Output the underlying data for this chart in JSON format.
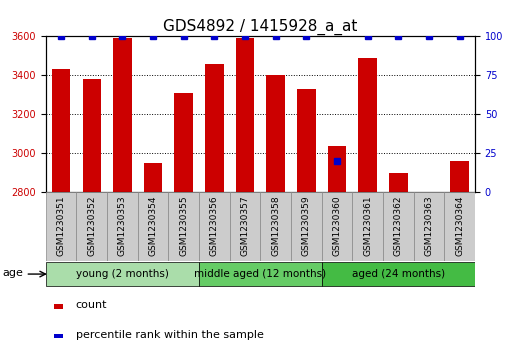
{
  "title": "GDS4892 / 1415928_a_at",
  "samples": [
    "GSM1230351",
    "GSM1230352",
    "GSM1230353",
    "GSM1230354",
    "GSM1230355",
    "GSM1230356",
    "GSM1230357",
    "GSM1230358",
    "GSM1230359",
    "GSM1230360",
    "GSM1230361",
    "GSM1230362",
    "GSM1230363",
    "GSM1230364"
  ],
  "counts": [
    3430,
    3380,
    3590,
    2950,
    3310,
    3460,
    3590,
    3400,
    3330,
    3040,
    3490,
    2900,
    2800,
    2960
  ],
  "percentile_ranks": [
    100,
    100,
    100,
    100,
    100,
    100,
    100,
    100,
    100,
    20,
    100,
    100,
    100,
    100
  ],
  "ylim_left": [
    2800,
    3600
  ],
  "ylim_right": [
    0,
    100
  ],
  "yticks_left": [
    2800,
    3000,
    3200,
    3400,
    3600
  ],
  "yticks_right": [
    0,
    25,
    50,
    75,
    100
  ],
  "bar_color": "#cc0000",
  "scatter_color": "#0000cc",
  "cell_bg": "#cccccc",
  "groups": [
    {
      "label": "young (2 months)",
      "start": 0,
      "end": 5,
      "color": "#aaddaa"
    },
    {
      "label": "middle aged (12 months)",
      "start": 5,
      "end": 9,
      "color": "#66cc66"
    },
    {
      "label": "aged (24 months)",
      "start": 9,
      "end": 14,
      "color": "#44bb44"
    }
  ],
  "age_label": "age",
  "legend": [
    {
      "label": "count",
      "color": "#cc0000"
    },
    {
      "label": "percentile rank within the sample",
      "color": "#0000cc"
    }
  ],
  "title_fontsize": 11,
  "tick_fontsize": 7,
  "group_fontsize": 8,
  "legend_fontsize": 8
}
